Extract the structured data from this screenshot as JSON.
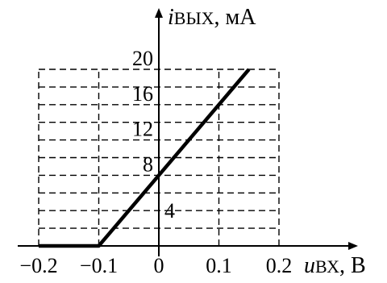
{
  "chart_data": {
    "type": "line",
    "series": [
      {
        "x": [
          -0.2,
          -0.1,
          0.15
        ],
        "y": [
          0,
          0,
          20
        ]
      }
    ],
    "x_ticks": [
      "−0.2",
      "−0.1",
      "0",
      "0.1",
      "0.2"
    ],
    "x_tick_values": [
      -0.2,
      -0.1,
      0,
      0.1,
      0.2
    ],
    "y_ticks": [
      "4",
      "8",
      "12",
      "16",
      "20"
    ],
    "y_tick_values": [
      4,
      8,
      12,
      16,
      20
    ],
    "xlabel": {
      "symbol": "u",
      "subscript": "ВХ",
      "unit": ", В"
    },
    "ylabel": {
      "symbol": "i",
      "subscript": "ВЫХ",
      "unit": ", мА"
    },
    "xlim": [
      -0.2,
      0.2
    ],
    "ylim": [
      0,
      20
    ],
    "grid": true,
    "grid_style": "dashed",
    "line_color": "#000000"
  }
}
